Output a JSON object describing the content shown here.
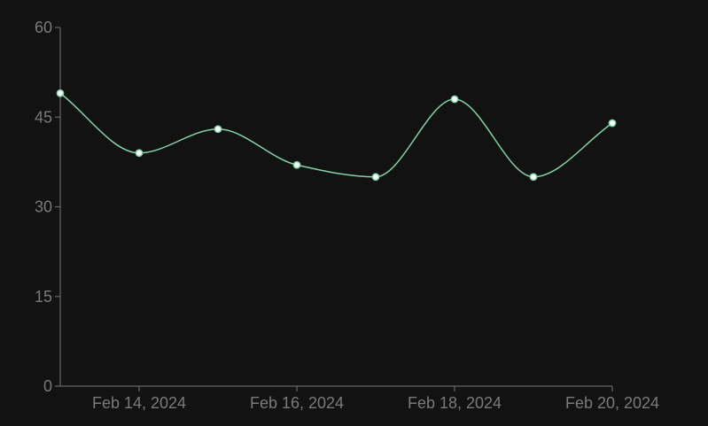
{
  "colors": {
    "background": "#121212",
    "axis": "#666666",
    "tick_label": "#7a7a7a",
    "series_line": "#7fd6a8",
    "point_fill": "#ffffff",
    "point_stroke": "#7fd6a8"
  },
  "chart_data": {
    "type": "line",
    "title": "",
    "xlabel": "",
    "ylabel": "",
    "grid": false,
    "curve": "smooth",
    "x": [
      "2024-02-13",
      "2024-02-14",
      "2024-02-15",
      "2024-02-16",
      "2024-02-17",
      "2024-02-18",
      "2024-02-19",
      "2024-02-20"
    ],
    "series": [
      {
        "values": [
          49,
          39,
          43,
          37,
          35,
          48,
          35,
          44
        ]
      }
    ],
    "ylim": [
      0,
      60
    ],
    "xlim": [
      "2024-02-13",
      "2024-02-20"
    ],
    "y_ticks": [
      "0",
      "15",
      "30",
      "45",
      "60"
    ],
    "x_ticks": [
      {
        "date": "2024-02-14",
        "label": "Feb 14, 2024"
      },
      {
        "date": "2024-02-16",
        "label": "Feb 16, 2024"
      },
      {
        "date": "2024-02-18",
        "label": "Feb 18, 2024"
      },
      {
        "date": "2024-02-20",
        "label": "Feb 20, 2024"
      }
    ]
  }
}
